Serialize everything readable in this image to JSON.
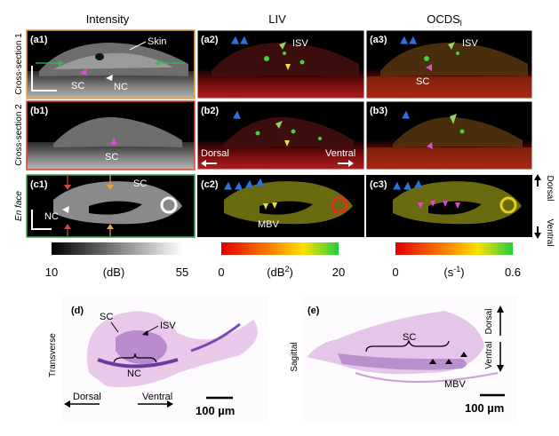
{
  "columns": {
    "intensity": "Intensity",
    "liv": "LIV",
    "ocds": "OCDS",
    "ocds_sub": "l"
  },
  "rows": {
    "r1": "Cross-section 1",
    "r2": "Cross-section 2",
    "r3": "En face"
  },
  "panels": {
    "a1": "(a1)",
    "a2": "(a2)",
    "a3": "(a3)",
    "b1": "(b1)",
    "b2": "(b2)",
    "b3": "(b3)",
    "c1": "(c1)",
    "c2": "(c2)",
    "c3": "(c3)",
    "d": "(d)",
    "e": "(e)"
  },
  "labels": {
    "skin": "Skin",
    "sc": "SC",
    "nc": "NC",
    "isv": "ISV",
    "mbv": "MBV",
    "dorsal": "Dorsal",
    "ventral": "Ventral",
    "transverse": "Transverse",
    "sagittal": "Sagittal",
    "scale": "100 µm"
  },
  "colorbars": {
    "intensity": {
      "min": "10",
      "unit": "(dB)",
      "max": "55"
    },
    "liv": {
      "min": "0",
      "unit": "(dB",
      "unit_sup": "2",
      "unit_end": ")",
      "max": "20"
    },
    "ocds": {
      "min": "0",
      "unit": "(s",
      "unit_sup": "-1",
      "unit_end": ")",
      "max": "0.6"
    }
  },
  "colors": {
    "row1_border": "#e8a33a",
    "row2_border": "#d9463a",
    "row3_border": "#3aa655",
    "blue_marker": "#2f6fe0",
    "green_marker": "#8fd36a",
    "yellow_marker": "#f0e030",
    "magenta_marker": "#e04ad0"
  }
}
